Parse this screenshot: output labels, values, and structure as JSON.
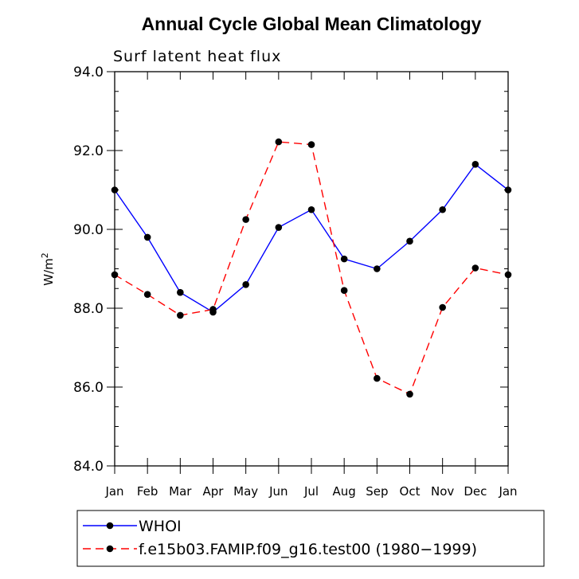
{
  "chart_data": {
    "type": "line",
    "title": "Annual Cycle Global Mean Climatology",
    "subtitle": "Surf latent heat flux",
    "ylabel_base": "W/m",
    "ylabel_sup": "2",
    "categories": [
      "Jan",
      "Feb",
      "Mar",
      "Apr",
      "May",
      "Jun",
      "Jul",
      "Aug",
      "Sep",
      "Oct",
      "Nov",
      "Dec",
      "Jan"
    ],
    "ylim": [
      84.0,
      94.0
    ],
    "yticks": [
      "84.0",
      "86.0",
      "88.0",
      "90.0",
      "92.0",
      "94.0"
    ],
    "ytick_values": [
      84,
      86,
      88,
      90,
      92,
      94
    ],
    "grid": false,
    "legend_position": "bottom",
    "series": [
      {
        "name": "WHOI",
        "color": "#0000ff",
        "dash": "solid",
        "values": [
          91.0,
          89.8,
          88.4,
          87.9,
          88.6,
          90.05,
          90.5,
          89.25,
          89.0,
          89.7,
          90.5,
          91.65,
          91.0
        ]
      },
      {
        "name": "f.e15b03.FAMIP.f09_g16.test00 (1980−1999)",
        "color": "#ff0000",
        "dash": "dashed",
        "values": [
          88.85,
          88.35,
          87.82,
          87.97,
          90.25,
          92.22,
          92.15,
          88.45,
          86.22,
          85.82,
          88.02,
          89.02,
          88.85
        ]
      }
    ]
  }
}
